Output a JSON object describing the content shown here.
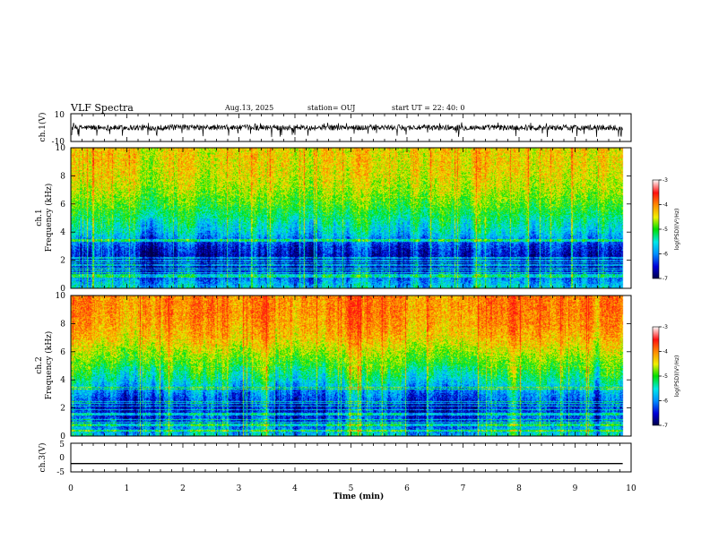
{
  "header": {
    "title": "VLF Spectra",
    "date": "Aug.13, 2025",
    "station": "station= OUJ",
    "start": "start  UT =   22: 40: 0"
  },
  "chart_data": [
    {
      "type": "line",
      "panel": "ch1-waveform",
      "ylabel": "ch.1(V)",
      "ylim": [
        -10,
        10
      ],
      "yticks": [
        "10",
        "-10"
      ],
      "xlim": [
        0,
        10
      ],
      "baseline": 0,
      "noise_amplitude": 2,
      "spikes_down_to": -7,
      "spikes_up_to": 4
    },
    {
      "type": "heatmap",
      "panel": "ch1-spectrogram",
      "ylabel_line1": "ch.1",
      "ylabel_line2": "Frequency (kHz)",
      "ylim": [
        0,
        10
      ],
      "yticks": [
        "0",
        "2",
        "4",
        "6",
        "8",
        "10"
      ],
      "xlim": [
        0,
        10
      ],
      "data_end_min": 9.85,
      "frequency_kHz": [
        0,
        1,
        2,
        3,
        4,
        5,
        6,
        7,
        8,
        9,
        10
      ],
      "log_psd_profile": [
        -5.4,
        -6.1,
        -6.6,
        -6.2,
        -5.4,
        -5.0,
        -4.6,
        -4.3,
        -4.1,
        -4.0,
        -4.0
      ],
      "colorbar": {
        "label": "log(PSD)(V²/Hz)",
        "ticks": [
          "-3",
          "-4",
          "-5",
          "-6",
          "-7"
        ],
        "range": [
          -7,
          -3
        ]
      }
    },
    {
      "type": "heatmap",
      "panel": "ch2-spectrogram",
      "ylabel_line1": "ch.2",
      "ylabel_line2": "Frequency (kHz)",
      "ylim": [
        0,
        10
      ],
      "yticks": [
        "0",
        "2",
        "4",
        "6",
        "8",
        "10"
      ],
      "xlim": [
        0,
        10
      ],
      "data_end_min": 9.85,
      "frequency_kHz": [
        0,
        1,
        2,
        3,
        4,
        5,
        6,
        7,
        8,
        9,
        10
      ],
      "log_psd_profile": [
        -5.4,
        -6.1,
        -6.4,
        -5.9,
        -5.2,
        -4.7,
        -4.3,
        -3.9,
        -3.7,
        -3.6,
        -3.6
      ],
      "colorbar": {
        "label": "log(PSD)(V²/Hz)",
        "ticks": [
          "-3",
          "-4",
          "-5",
          "-6",
          "-7"
        ],
        "range": [
          -7,
          -3
        ]
      }
    },
    {
      "type": "line",
      "panel": "ch3-waveform",
      "ylabel": "ch.3(V)",
      "ylim": [
        -5,
        5
      ],
      "yticks": [
        "5",
        "0",
        "-5"
      ],
      "xlim": [
        0,
        10
      ],
      "x": [
        0,
        9.85
      ],
      "y": [
        -2.1,
        -2.1
      ]
    }
  ],
  "xaxis": {
    "label": "Time (min)",
    "ticks": [
      "0",
      "1",
      "2",
      "3",
      "4",
      "5",
      "6",
      "7",
      "8",
      "9",
      "10"
    ]
  },
  "colors": {
    "colormap": [
      "#00004a",
      "#0000d8",
      "#0090ff",
      "#00e8e8",
      "#00e000",
      "#f0f000",
      "#ff8800",
      "#ff1010",
      "#ffffff"
    ]
  }
}
